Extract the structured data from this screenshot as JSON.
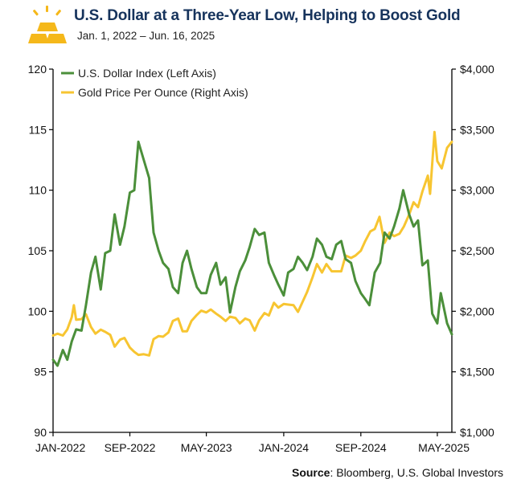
{
  "header": {
    "title": "U.S. Dollar at a Three-Year Low, Helping to Boost Gold",
    "subtitle": "Jan. 1, 2022 – Jun. 16, 2025"
  },
  "source": {
    "label": "Source",
    "text": ": Bloomberg, U.S. Global Investors"
  },
  "colors": {
    "dxy": "#4b8f3a",
    "gold": "#f7c531",
    "title": "#16335c",
    "axis": "#000000",
    "logo": "#f5b81a"
  },
  "icons": [
    "gold-bars-logo-icon"
  ],
  "chart_data": {
    "type": "line",
    "x_ticks": [
      "JAN-2022",
      "SEP-2022",
      "MAY-2023",
      "JAN-2024",
      "SEP-2024",
      "MAY-2025"
    ],
    "left_axis": {
      "ticks": [
        "90",
        "95",
        "100",
        "105",
        "110",
        "115",
        "120"
      ],
      "ylim": [
        90,
        120
      ]
    },
    "right_axis": {
      "ticks": [
        "$1,000",
        "$1,500",
        "$2,000",
        "$2,500",
        "$3,000",
        "$3,500",
        "$4,000"
      ],
      "ylim": [
        1000,
        4000
      ]
    },
    "legend": {
      "position": "top-left"
    },
    "series": [
      {
        "name": "U.S. Dollar Index (Left Axis)",
        "axis": "left",
        "points": [
          [
            "2022-01-01",
            96.0
          ],
          [
            "2022-01-15",
            95.5
          ],
          [
            "2022-02-01",
            96.8
          ],
          [
            "2022-02-15",
            96.0
          ],
          [
            "2022-03-01",
            97.5
          ],
          [
            "2022-03-15",
            98.5
          ],
          [
            "2022-04-01",
            98.4
          ],
          [
            "2022-04-15",
            100.5
          ],
          [
            "2022-05-01",
            103.2
          ],
          [
            "2022-05-15",
            104.5
          ],
          [
            "2022-06-01",
            101.8
          ],
          [
            "2022-06-15",
            104.8
          ],
          [
            "2022-07-01",
            105.0
          ],
          [
            "2022-07-15",
            108.0
          ],
          [
            "2022-08-01",
            105.5
          ],
          [
            "2022-08-15",
            107.0
          ],
          [
            "2022-09-01",
            109.8
          ],
          [
            "2022-09-15",
            110.0
          ],
          [
            "2022-09-28",
            114.0
          ],
          [
            "2022-10-15",
            112.5
          ],
          [
            "2022-11-01",
            111.0
          ],
          [
            "2022-11-15",
            106.5
          ],
          [
            "2022-12-01",
            105.0
          ],
          [
            "2022-12-15",
            104.0
          ],
          [
            "2023-01-01",
            103.5
          ],
          [
            "2023-01-15",
            102.0
          ],
          [
            "2023-02-01",
            101.5
          ],
          [
            "2023-02-15",
            104.0
          ],
          [
            "2023-03-01",
            105.0
          ],
          [
            "2023-03-15",
            103.5
          ],
          [
            "2023-04-01",
            102.0
          ],
          [
            "2023-04-15",
            101.5
          ],
          [
            "2023-05-01",
            101.5
          ],
          [
            "2023-05-15",
            103.0
          ],
          [
            "2023-06-01",
            104.0
          ],
          [
            "2023-06-15",
            102.2
          ],
          [
            "2023-07-01",
            102.8
          ],
          [
            "2023-07-15",
            99.9
          ],
          [
            "2023-08-01",
            102.0
          ],
          [
            "2023-08-15",
            103.3
          ],
          [
            "2023-09-01",
            104.2
          ],
          [
            "2023-09-15",
            105.3
          ],
          [
            "2023-10-01",
            106.8
          ],
          [
            "2023-10-15",
            106.3
          ],
          [
            "2023-11-01",
            106.5
          ],
          [
            "2023-11-15",
            104.0
          ],
          [
            "2023-12-01",
            103.0
          ],
          [
            "2023-12-15",
            102.2
          ],
          [
            "2024-01-01",
            101.3
          ],
          [
            "2024-01-15",
            103.2
          ],
          [
            "2024-02-01",
            103.5
          ],
          [
            "2024-02-15",
            104.5
          ],
          [
            "2024-03-01",
            104.0
          ],
          [
            "2024-03-15",
            103.4
          ],
          [
            "2024-04-01",
            104.5
          ],
          [
            "2024-04-15",
            106.0
          ],
          [
            "2024-05-01",
            105.5
          ],
          [
            "2024-05-15",
            104.5
          ],
          [
            "2024-06-01",
            104.3
          ],
          [
            "2024-06-15",
            105.5
          ],
          [
            "2024-07-01",
            105.8
          ],
          [
            "2024-07-15",
            104.3
          ],
          [
            "2024-08-01",
            104.0
          ],
          [
            "2024-08-15",
            102.5
          ],
          [
            "2024-09-01",
            101.5
          ],
          [
            "2024-09-15",
            101.0
          ],
          [
            "2024-09-28",
            100.5
          ],
          [
            "2024-10-15",
            103.2
          ],
          [
            "2024-11-01",
            104.0
          ],
          [
            "2024-11-15",
            106.5
          ],
          [
            "2024-12-01",
            106.0
          ],
          [
            "2024-12-15",
            107.0
          ],
          [
            "2025-01-01",
            108.5
          ],
          [
            "2025-01-13",
            110.0
          ],
          [
            "2025-02-01",
            108.0
          ],
          [
            "2025-02-15",
            107.0
          ],
          [
            "2025-03-01",
            107.5
          ],
          [
            "2025-03-15",
            103.8
          ],
          [
            "2025-04-01",
            104.2
          ],
          [
            "2025-04-15",
            99.8
          ],
          [
            "2025-05-01",
            99.0
          ],
          [
            "2025-05-12",
            101.5
          ],
          [
            "2025-06-01",
            99.0
          ],
          [
            "2025-06-16",
            98.1
          ]
        ]
      },
      {
        "name": "Gold Price Per Ounce (Right Axis)",
        "axis": "right",
        "points": [
          [
            "2022-01-01",
            1800
          ],
          [
            "2022-01-15",
            1815
          ],
          [
            "2022-02-01",
            1800
          ],
          [
            "2022-02-15",
            1850
          ],
          [
            "2022-03-01",
            1950
          ],
          [
            "2022-03-08",
            2050
          ],
          [
            "2022-03-15",
            1930
          ],
          [
            "2022-04-01",
            1935
          ],
          [
            "2022-04-15",
            1975
          ],
          [
            "2022-05-01",
            1870
          ],
          [
            "2022-05-15",
            1815
          ],
          [
            "2022-06-01",
            1848
          ],
          [
            "2022-06-15",
            1830
          ],
          [
            "2022-07-01",
            1805
          ],
          [
            "2022-07-15",
            1708
          ],
          [
            "2022-08-01",
            1765
          ],
          [
            "2022-08-15",
            1780
          ],
          [
            "2022-09-01",
            1700
          ],
          [
            "2022-09-15",
            1665
          ],
          [
            "2022-09-28",
            1640
          ],
          [
            "2022-10-15",
            1645
          ],
          [
            "2022-11-01",
            1635
          ],
          [
            "2022-11-15",
            1770
          ],
          [
            "2022-12-01",
            1795
          ],
          [
            "2022-12-15",
            1790
          ],
          [
            "2023-01-01",
            1825
          ],
          [
            "2023-01-15",
            1920
          ],
          [
            "2023-02-01",
            1940
          ],
          [
            "2023-02-15",
            1835
          ],
          [
            "2023-03-01",
            1835
          ],
          [
            "2023-03-15",
            1920
          ],
          [
            "2023-04-01",
            1970
          ],
          [
            "2023-04-15",
            2005
          ],
          [
            "2023-05-01",
            1990
          ],
          [
            "2023-05-15",
            2015
          ],
          [
            "2023-06-01",
            1980
          ],
          [
            "2023-06-15",
            1955
          ],
          [
            "2023-07-01",
            1920
          ],
          [
            "2023-07-15",
            1955
          ],
          [
            "2023-08-01",
            1945
          ],
          [
            "2023-08-15",
            1900
          ],
          [
            "2023-09-01",
            1940
          ],
          [
            "2023-09-15",
            1925
          ],
          [
            "2023-10-01",
            1840
          ],
          [
            "2023-10-15",
            1925
          ],
          [
            "2023-11-01",
            1985
          ],
          [
            "2023-11-15",
            1965
          ],
          [
            "2023-12-01",
            2070
          ],
          [
            "2023-12-15",
            2030
          ],
          [
            "2024-01-01",
            2060
          ],
          [
            "2024-01-15",
            2055
          ],
          [
            "2024-02-01",
            2050
          ],
          [
            "2024-02-15",
            1995
          ],
          [
            "2024-03-01",
            2080
          ],
          [
            "2024-03-15",
            2160
          ],
          [
            "2024-04-01",
            2280
          ],
          [
            "2024-04-15",
            2390
          ],
          [
            "2024-05-01",
            2320
          ],
          [
            "2024-05-15",
            2390
          ],
          [
            "2024-06-01",
            2330
          ],
          [
            "2024-06-15",
            2330
          ],
          [
            "2024-07-01",
            2330
          ],
          [
            "2024-07-15",
            2460
          ],
          [
            "2024-08-01",
            2440
          ],
          [
            "2024-08-15",
            2460
          ],
          [
            "2024-09-01",
            2500
          ],
          [
            "2024-09-15",
            2580
          ],
          [
            "2024-10-01",
            2660
          ],
          [
            "2024-10-15",
            2680
          ],
          [
            "2024-10-30",
            2780
          ],
          [
            "2024-11-15",
            2565
          ],
          [
            "2024-12-01",
            2650
          ],
          [
            "2024-12-15",
            2620
          ],
          [
            "2025-01-01",
            2640
          ],
          [
            "2025-01-15",
            2700
          ],
          [
            "2025-02-01",
            2800
          ],
          [
            "2025-02-15",
            2900
          ],
          [
            "2025-03-01",
            2860
          ],
          [
            "2025-03-15",
            2990
          ],
          [
            "2025-04-01",
            3120
          ],
          [
            "2025-04-08",
            2970
          ],
          [
            "2025-04-22",
            3480
          ],
          [
            "2025-05-01",
            3240
          ],
          [
            "2025-05-15",
            3180
          ],
          [
            "2025-06-01",
            3350
          ],
          [
            "2025-06-16",
            3400
          ]
        ]
      }
    ]
  }
}
